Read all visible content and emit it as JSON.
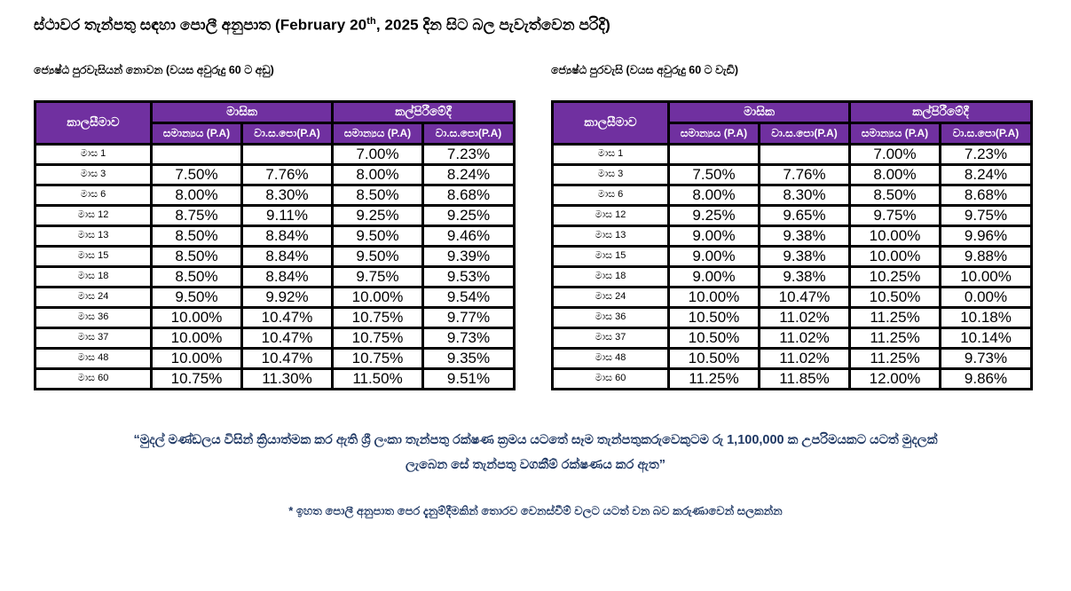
{
  "colors": {
    "header_background": "#7030A0",
    "header_text": "#FFFFFF",
    "table_border": "#000000",
    "footer_text": "#1F3864",
    "body_text": "#000000"
  },
  "title": {
    "prefix": "ස්ථාවර තැන්පතු සඳහා පොලී අනුපාත (February 20",
    "sup": "th",
    "suffix": ", 2025 දින සිට බල පැවැත්වෙන පරිදි)"
  },
  "tables": [
    {
      "subtitle": "ජ්‍යෙෂ්ඨ පුරවැසියන් නොවන (වයස අවුරුදු 60 ට අඩු)",
      "header": {
        "period": "කාලසීමාව",
        "monthly": "මාසික",
        "maturity": "කල්පිරීමේදී",
        "sub": [
          "සමාන්‍යය (P.A)",
          "වා.ස.පො(P.A)",
          "සමාන්‍යය (P.A)",
          "වා.ස.පො(P.A)"
        ]
      },
      "rows": [
        {
          "period": "මාස 1",
          "values": [
            "",
            "",
            "7.00%",
            "7.23%"
          ]
        },
        {
          "period": "මාස 3",
          "values": [
            "7.50%",
            "7.76%",
            "8.00%",
            "8.24%"
          ]
        },
        {
          "period": "මාස 6",
          "values": [
            "8.00%",
            "8.30%",
            "8.50%",
            "8.68%"
          ]
        },
        {
          "period": "මාස 12",
          "values": [
            "8.75%",
            "9.11%",
            "9.25%",
            "9.25%"
          ]
        },
        {
          "period": "මාස 13",
          "values": [
            "8.50%",
            "8.84%",
            "9.50%",
            "9.46%"
          ]
        },
        {
          "period": "මාස 15",
          "values": [
            "8.50%",
            "8.84%",
            "9.50%",
            "9.39%"
          ]
        },
        {
          "period": "මාස 18",
          "values": [
            "8.50%",
            "8.84%",
            "9.75%",
            "9.53%"
          ]
        },
        {
          "period": "මාස 24",
          "values": [
            "9.50%",
            "9.92%",
            "10.00%",
            "9.54%"
          ]
        },
        {
          "period": "මාස 36",
          "values": [
            "10.00%",
            "10.47%",
            "10.75%",
            "9.77%"
          ]
        },
        {
          "period": "මාස 37",
          "values": [
            "10.00%",
            "10.47%",
            "10.75%",
            "9.73%"
          ]
        },
        {
          "period": "මාස 48",
          "values": [
            "10.00%",
            "10.47%",
            "10.75%",
            "9.35%"
          ]
        },
        {
          "period": "මාස 60",
          "values": [
            "10.75%",
            "11.30%",
            "11.50%",
            "9.51%"
          ]
        }
      ]
    },
    {
      "subtitle": "ජ්‍යෙෂ්ඨ පුරවැසි (වයස අවුරුදු 60 ට වැඩි)",
      "header": {
        "period": "කාලසීමාව",
        "monthly": "මාසික",
        "maturity": "කල්පිරීමේදී",
        "sub": [
          "සමාන්‍යය (P.A)",
          "වා.ස.පො(P.A)",
          "සමාන්‍යය (P.A)",
          "වා.ස.පො(P.A)"
        ]
      },
      "rows": [
        {
          "period": "මාස 1",
          "values": [
            "",
            "",
            "7.00%",
            "7.23%"
          ]
        },
        {
          "period": "මාස 3",
          "values": [
            "7.50%",
            "7.76%",
            "8.00%",
            "8.24%"
          ]
        },
        {
          "period": "මාස 6",
          "values": [
            "8.00%",
            "8.30%",
            "8.50%",
            "8.68%"
          ]
        },
        {
          "period": "මාස 12",
          "values": [
            "9.25%",
            "9.65%",
            "9.75%",
            "9.75%"
          ]
        },
        {
          "period": "මාස 13",
          "values": [
            "9.00%",
            "9.38%",
            "10.00%",
            "9.96%"
          ]
        },
        {
          "period": "මාස 15",
          "values": [
            "9.00%",
            "9.38%",
            "10.00%",
            "9.88%"
          ]
        },
        {
          "period": "මාස 18",
          "values": [
            "9.00%",
            "9.38%",
            "10.25%",
            "10.00%"
          ]
        },
        {
          "period": "මාස 24",
          "values": [
            "10.00%",
            "10.47%",
            "10.50%",
            "0.00%"
          ]
        },
        {
          "period": "මාස 36",
          "values": [
            "10.50%",
            "11.02%",
            "11.25%",
            "10.18%"
          ]
        },
        {
          "period": "මාස 37",
          "values": [
            "10.50%",
            "11.02%",
            "11.25%",
            "10.14%"
          ]
        },
        {
          "period": "මාස 48",
          "values": [
            "10.50%",
            "11.02%",
            "11.25%",
            "9.73%"
          ]
        },
        {
          "period": "මාස 60",
          "values": [
            "11.25%",
            "11.85%",
            "12.00%",
            "9.86%"
          ]
        }
      ]
    }
  ],
  "footer": {
    "note_line1": "“මුදල් මණ්ඩලය විසින් ක්‍රියාත්මක කර ඇති ශ්‍රී ලංකා තැන්පතු රක්ෂණ ක්‍රමය යටතේ සෑම තැන්පතුකරුවෙකුටම රු 1,100,000 ක උපරිමයකට යටත් මුදලක්",
    "note_line2": "ලැබෙන සේ තැන්පතු වගකීම් රක්ෂණය කර ඇත”",
    "footnote": "* ඉහත පොලී අනුපාත පෙර දැනුම්දීමකින් තොරව වෙනස්වීම් වලට යටත් වන බව කරුණාවෙන් සලකන්න"
  }
}
